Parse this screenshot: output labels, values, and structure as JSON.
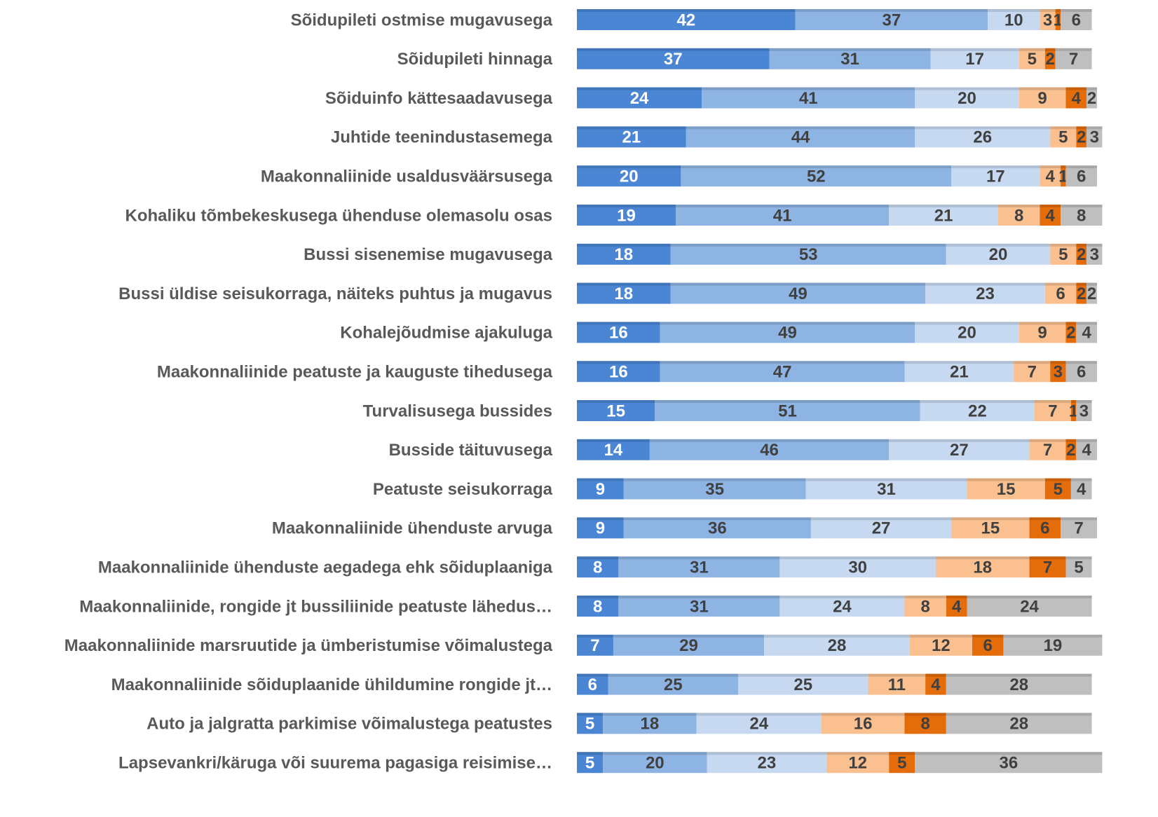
{
  "chart_data": {
    "type": "stacked_bar_horizontal",
    "categories": [
      "Sõidupileti ostmise mugavusega",
      "Sõidupileti hinnaga",
      "Sõiduinfo kättesaadavusega",
      "Juhtide teenindustasemega",
      "Maakonnaliinide usaldusväärsusega",
      "Kohaliku tõmbekeskusega ühenduse olemasolu osas",
      "Bussi sisenemise mugavusega",
      "Bussi üldise seisukorraga, näiteks puhtus ja mugavus ",
      "Kohalejõudmise ajakuluga",
      "Maakonnaliinide peatuste ja kauguste tihedusega",
      "Turvalisusega bussides",
      "Busside täituvusega",
      "Peatuste seisukorraga",
      "Maakonnaliinide ühenduste arvuga",
      "Maakonnaliinide ühenduste aegadega ehk sõiduplaaniga",
      "Maakonnaliinide, rongide jt bussiliinide peatuste lähedus…",
      "Maakonnaliinide marsruutide ja ümberistumise võimalustega",
      "Maakonnaliinide sõiduplaanide ühildumine rongide jt…",
      "Auto ja jalgratta parkimise võimalustega peatustes",
      "Lapsevankri/käruga või suurema pagasiga reisimise…"
    ],
    "series": [
      {
        "color": "#4a86d4",
        "values": [
          42,
          37,
          24,
          21,
          20,
          19,
          18,
          18,
          16,
          16,
          15,
          14,
          9,
          9,
          8,
          8,
          7,
          6,
          5,
          5
        ]
      },
      {
        "color": "#8db4e2",
        "values": [
          37,
          31,
          41,
          44,
          52,
          41,
          53,
          49,
          49,
          47,
          51,
          46,
          35,
          36,
          31,
          31,
          29,
          25,
          18,
          20
        ]
      },
      {
        "color": "#c6d9f1",
        "values": [
          10,
          17,
          20,
          26,
          17,
          21,
          20,
          23,
          20,
          21,
          22,
          27,
          31,
          27,
          30,
          24,
          28,
          25,
          24,
          23
        ]
      },
      {
        "color": "#fac090",
        "values": [
          3,
          5,
          9,
          5,
          4,
          8,
          5,
          6,
          9,
          7,
          7,
          7,
          15,
          15,
          18,
          8,
          12,
          11,
          16,
          12
        ]
      },
      {
        "color": "#e46c0a",
        "values": [
          1,
          2,
          4,
          2,
          1,
          4,
          2,
          2,
          2,
          3,
          1,
          2,
          5,
          6,
          7,
          4,
          6,
          4,
          8,
          5
        ]
      },
      {
        "color": "#bfbfbf",
        "values": [
          6,
          7,
          2,
          3,
          6,
          8,
          3,
          2,
          4,
          6,
          3,
          4,
          4,
          7,
          5,
          24,
          19,
          28,
          28,
          36
        ]
      }
    ],
    "xlim": [
      0,
      100
    ]
  }
}
